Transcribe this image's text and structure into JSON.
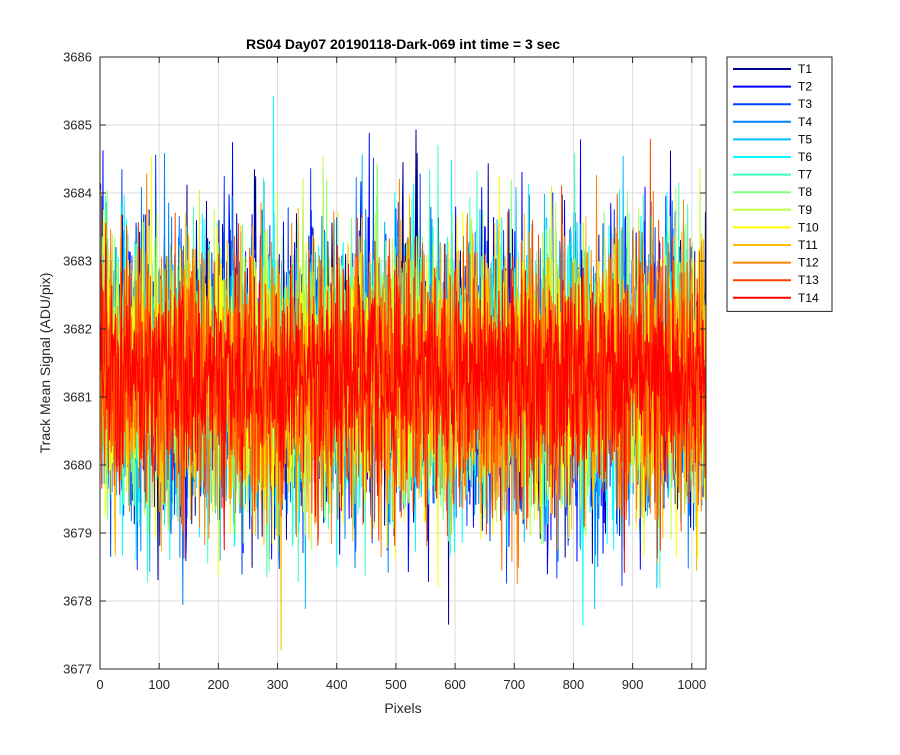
{
  "chart_data": {
    "type": "line",
    "title": "RS04 Day07 20190118-Dark-069 int time = 3 sec",
    "xlabel": "Pixels",
    "ylabel": "Track Mean Signal (ADU/pix)",
    "xlim": [
      0,
      1024
    ],
    "ylim": [
      3677,
      3686
    ],
    "xticks": [
      0,
      100,
      200,
      300,
      400,
      500,
      600,
      700,
      800,
      900,
      1000
    ],
    "yticks": [
      3677,
      3678,
      3679,
      3680,
      3681,
      3682,
      3683,
      3684,
      3685,
      3686
    ],
    "grid": true,
    "legend_position": "outside-top-right",
    "series": [
      {
        "name": "T1",
        "color": "#00008f",
        "mean": 3681.3,
        "sd": 1.05,
        "seed": 11
      },
      {
        "name": "T2",
        "color": "#0000ff",
        "mean": 3681.3,
        "sd": 1.05,
        "seed": 23
      },
      {
        "name": "T3",
        "color": "#0040ff",
        "mean": 3681.3,
        "sd": 1.05,
        "seed": 37
      },
      {
        "name": "T4",
        "color": "#0080ff",
        "mean": 3681.3,
        "sd": 1.0,
        "seed": 41
      },
      {
        "name": "T5",
        "color": "#00bfff",
        "mean": 3681.3,
        "sd": 1.0,
        "seed": 53
      },
      {
        "name": "T6",
        "color": "#00ffff",
        "mean": 3681.3,
        "sd": 1.0,
        "seed": 67
      },
      {
        "name": "T7",
        "color": "#40ffbf",
        "mean": 3681.3,
        "sd": 1.0,
        "seed": 71
      },
      {
        "name": "T8",
        "color": "#80ff80",
        "mean": 3681.3,
        "sd": 1.0,
        "seed": 83
      },
      {
        "name": "T9",
        "color": "#bfff40",
        "mean": 3681.3,
        "sd": 1.0,
        "seed": 97
      },
      {
        "name": "T10",
        "color": "#ffff00",
        "mean": 3681.3,
        "sd": 1.0,
        "seed": 101
      },
      {
        "name": "T11",
        "color": "#ffbf00",
        "mean": 3681.3,
        "sd": 1.0,
        "seed": 113
      },
      {
        "name": "T12",
        "color": "#ff8000",
        "mean": 3681.3,
        "sd": 1.0,
        "seed": 127
      },
      {
        "name": "T13",
        "color": "#ff4000",
        "mean": 3681.25,
        "sd": 0.95,
        "seed": 131
      },
      {
        "name": "T14",
        "color": "#ff0000",
        "mean": 3681.3,
        "sd": 0.75,
        "seed": 139
      }
    ],
    "n_pixels": 1024
  }
}
